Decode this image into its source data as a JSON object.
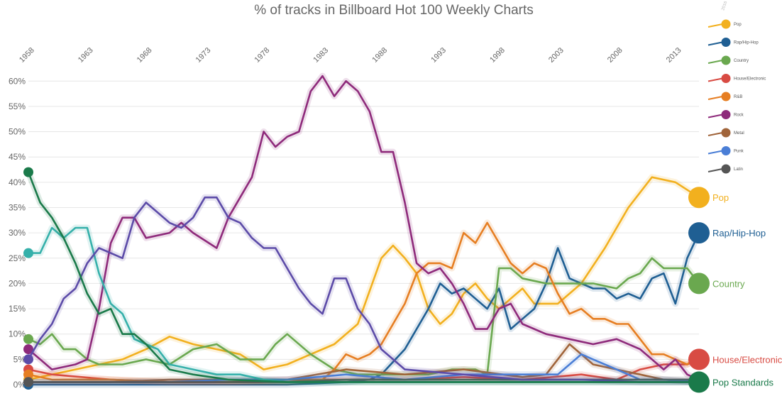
{
  "chart_data": {
    "type": "line",
    "title": "",
    "subtitle": "% of tracks in Billboard Hot 100 Weekly Charts",
    "xlabel": "",
    "ylabel": "",
    "x_ticks": [
      "1958",
      "1963",
      "1968",
      "1973",
      "1978",
      "1983",
      "1988",
      "1993",
      "1998",
      "2003",
      "2008",
      "2013"
    ],
    "y_ticks": [
      "0%",
      "5%",
      "10%",
      "15%",
      "20%",
      "25%",
      "30%",
      "35%",
      "40%",
      "45%",
      "50%",
      "55%",
      "60%"
    ],
    "xlim": [
      1958,
      2015
    ],
    "ylim": [
      0,
      62
    ],
    "grid": true,
    "legend_placement": "top-right",
    "legend_year_label": "2016",
    "series": [
      {
        "name": "Pop",
        "end_label": "Pop",
        "color": "#f2b01e",
        "x": [
          1958,
          1960,
          1962,
          1964,
          1966,
          1968,
          1970,
          1972,
          1974,
          1976,
          1978,
          1980,
          1982,
          1984,
          1986,
          1988,
          1989,
          1990,
          1991,
          1992,
          1993,
          1994,
          1995,
          1996,
          1997,
          1998,
          1999,
          2000,
          2001,
          2002,
          2003,
          2005,
          2007,
          2009,
          2011,
          2013,
          2015
        ],
        "values": [
          1,
          2,
          3,
          4,
          5,
          7,
          9.5,
          8,
          7,
          6,
          3,
          4,
          6,
          8,
          12,
          25,
          27.5,
          25,
          22,
          15,
          12,
          14,
          18,
          20,
          17,
          15,
          17,
          19,
          16,
          16,
          16,
          20,
          27,
          35,
          41,
          40,
          37
        ]
      },
      {
        "name": "Rap/Hip-Hop",
        "end_label": "Rap/Hip-Hop",
        "color": "#1f5f93",
        "x": [
          1958,
          1965,
          1975,
          1980,
          1985,
          1987,
          1988,
          1990,
          1991,
          1992,
          1993,
          1994,
          1995,
          1996,
          1997,
          1998,
          1999,
          2000,
          2001,
          2002,
          2003,
          2004,
          2005,
          2006,
          2007,
          2008,
          2009,
          2010,
          2011,
          2012,
          2013,
          2014,
          2015
        ],
        "values": [
          0,
          0,
          0,
          0,
          0.5,
          1,
          2,
          7,
          11,
          15,
          20,
          18,
          19,
          17,
          15,
          19,
          11,
          13,
          15,
          20,
          27,
          21,
          20,
          19,
          19,
          17,
          18,
          17,
          21,
          22,
          16,
          25,
          30
        ]
      },
      {
        "name": "Country",
        "end_label": "Country",
        "color": "#6aa84f",
        "x": [
          1958,
          1959,
          1960,
          1961,
          1962,
          1963,
          1964,
          1966,
          1968,
          1970,
          1972,
          1974,
          1976,
          1978,
          1979,
          1980,
          1982,
          1984,
          1986,
          1988,
          1990,
          1992,
          1994,
          1996,
          1997,
          1998,
          1999,
          2000,
          2002,
          2004,
          2006,
          2008,
          2009,
          2010,
          2011,
          2012,
          2014,
          2015
        ],
        "values": [
          9,
          8,
          10,
          7,
          7,
          5,
          4,
          4,
          5,
          4,
          7,
          8,
          5,
          5,
          8,
          10,
          6,
          3,
          2,
          2,
          2,
          2,
          3,
          3,
          2,
          23,
          23,
          21,
          20,
          20,
          20,
          19,
          21,
          22,
          25,
          23,
          23,
          20
        ]
      },
      {
        "name": "House/Electronic",
        "end_label": "House/Electronic",
        "color": "#d84b43",
        "x": [
          1958,
          1960,
          1965,
          1970,
          1975,
          1980,
          1985,
          1990,
          1995,
          2000,
          2005,
          2008,
          2010,
          2012,
          2014,
          2015
        ],
        "values": [
          3,
          2,
          1,
          0.5,
          0.5,
          1,
          1,
          1,
          1.5,
          1,
          2,
          1,
          3,
          4,
          4,
          5
        ]
      },
      {
        "name": "R&B",
        "end_label": "",
        "color": "#e67e22",
        "x": [
          1958,
          1960,
          1965,
          1970,
          1975,
          1980,
          1983,
          1984,
          1985,
          1986,
          1987,
          1988,
          1989,
          1990,
          1991,
          1992,
          1993,
          1994,
          1995,
          1996,
          1997,
          1998,
          1999,
          2000,
          2001,
          2002,
          2003,
          2004,
          2005,
          2006,
          2007,
          2008,
          2009,
          2010,
          2011,
          2012,
          2013,
          2014,
          2015
        ],
        "values": [
          2,
          1,
          1,
          0.5,
          0.5,
          0.5,
          1,
          3,
          6,
          5,
          6,
          8,
          12,
          16,
          22,
          24,
          24,
          23,
          30,
          28,
          32,
          28,
          24,
          22,
          24,
          23,
          18,
          14,
          15,
          13,
          13,
          12,
          12,
          9,
          6,
          6,
          5,
          4,
          6
        ]
      },
      {
        "name": "Rock",
        "end_label": "",
        "color": "#8e2a7b",
        "x": [
          1958,
          1960,
          1962,
          1963,
          1964,
          1965,
          1966,
          1967,
          1968,
          1970,
          1971,
          1972,
          1974,
          1975,
          1976,
          1977,
          1978,
          1979,
          1980,
          1981,
          1982,
          1983,
          1984,
          1985,
          1986,
          1987,
          1988,
          1989,
          1990,
          1991,
          1992,
          1993,
          1994,
          1995,
          1996,
          1997,
          1998,
          1999,
          2000,
          2002,
          2004,
          2006,
          2008,
          2010,
          2012,
          2013,
          2014,
          2015
        ],
        "values": [
          7,
          3,
          4,
          5,
          15,
          28,
          33,
          33,
          29,
          30,
          32,
          30,
          27,
          33,
          37,
          41,
          50,
          47,
          49,
          50,
          58,
          61,
          57,
          60,
          58,
          54,
          46,
          46,
          36,
          24,
          22,
          23,
          20,
          16,
          11,
          11,
          15,
          16,
          12,
          10,
          9,
          8,
          9,
          7,
          3,
          5,
          2,
          1
        ]
      },
      {
        "name": "Metal",
        "end_label": "",
        "color": "#a0643a",
        "x": [
          1958,
          1965,
          1970,
          1975,
          1980,
          1985,
          1990,
          1995,
          2000,
          2002,
          2004,
          2006,
          2008,
          2010,
          2012,
          2015
        ],
        "values": [
          0.5,
          0.5,
          1,
          1,
          1,
          3,
          2,
          3,
          1.5,
          2,
          8,
          4,
          3,
          2,
          1,
          0.5
        ]
      },
      {
        "name": "Punk",
        "end_label": "",
        "color": "#4a7ed6",
        "x": [
          1958,
          1965,
          1970,
          1975,
          1980,
          1985,
          1990,
          1995,
          2000,
          2003,
          2004,
          2005,
          2006,
          2008,
          2010,
          2012,
          2015
        ],
        "values": [
          0.5,
          0.5,
          0.5,
          1,
          1,
          2,
          1,
          2,
          2,
          2,
          4,
          6,
          5,
          3,
          1,
          1,
          0.5
        ]
      },
      {
        "name": "Latin",
        "end_label": "",
        "color": "#555555",
        "x": [
          1958,
          1965,
          1970,
          1975,
          1980,
          1985,
          1990,
          1995,
          2000,
          2005,
          2010,
          2015
        ],
        "values": [
          0.5,
          0.5,
          0.5,
          0.5,
          0.5,
          1,
          1,
          1,
          1,
          1,
          1,
          1
        ]
      },
      {
        "name": "",
        "end_label": "",
        "color": "#35b0aa",
        "x": [
          1958,
          1959,
          1960,
          1961,
          1962,
          1963,
          1964,
          1965,
          1966,
          1967,
          1968,
          1969,
          1970,
          1972,
          1974,
          1976,
          1978,
          1980,
          1985,
          1990,
          1995,
          2000,
          2005,
          2010,
          2015
        ],
        "values": [
          26,
          26,
          31,
          29,
          31,
          31,
          22,
          16,
          14,
          9,
          8,
          7,
          4,
          3,
          2,
          2,
          1,
          0.5,
          0.5,
          0.5,
          0.5,
          0.5,
          0.5,
          0.5,
          0.5
        ]
      },
      {
        "name": "",
        "end_label": "",
        "color": "#5c4ba8",
        "x": [
          1958,
          1959,
          1960,
          1961,
          1962,
          1963,
          1964,
          1965,
          1966,
          1967,
          1968,
          1969,
          1970,
          1971,
          1972,
          1973,
          1974,
          1975,
          1976,
          1977,
          1978,
          1979,
          1980,
          1981,
          1982,
          1983,
          1984,
          1985,
          1986,
          1987,
          1988,
          1990,
          1995,
          2000,
          2005,
          2010,
          2015
        ],
        "values": [
          5,
          9,
          12,
          17,
          19,
          24,
          27,
          26,
          25,
          33,
          36,
          34,
          32,
          31,
          33,
          37,
          37,
          33,
          32,
          29,
          27,
          27,
          23,
          19,
          16,
          14,
          21,
          21,
          15,
          12,
          7,
          3,
          2,
          1,
          1,
          0.5,
          0.5
        ]
      },
      {
        "name": "Pop Standards",
        "end_label": "Pop Standards",
        "color": "#1a7a4a",
        "x": [
          1958,
          1959,
          1960,
          1961,
          1962,
          1963,
          1964,
          1965,
          1966,
          1967,
          1968,
          1970,
          1972,
          1975,
          1980,
          1985,
          1990,
          2000,
          2010,
          2015
        ],
        "values": [
          42,
          36,
          33,
          29,
          24,
          18,
          14,
          15,
          10,
          10,
          8,
          3,
          2,
          1,
          0.5,
          0.5,
          0.5,
          0.5,
          0.5,
          0.5
        ]
      }
    ],
    "legend_entries": [
      "Pop",
      "Rap/Hip-Hop",
      "Country",
      "House/Electronic",
      "R&B",
      "Rock",
      "Metal",
      "Punk",
      "Latin"
    ],
    "legend_labels": [
      "Pop",
      "Rap/Hip-Hop",
      "Country",
      "House/Electronic",
      "R&B",
      "Rock",
      "Metal",
      "Punk",
      "Latin"
    ]
  }
}
